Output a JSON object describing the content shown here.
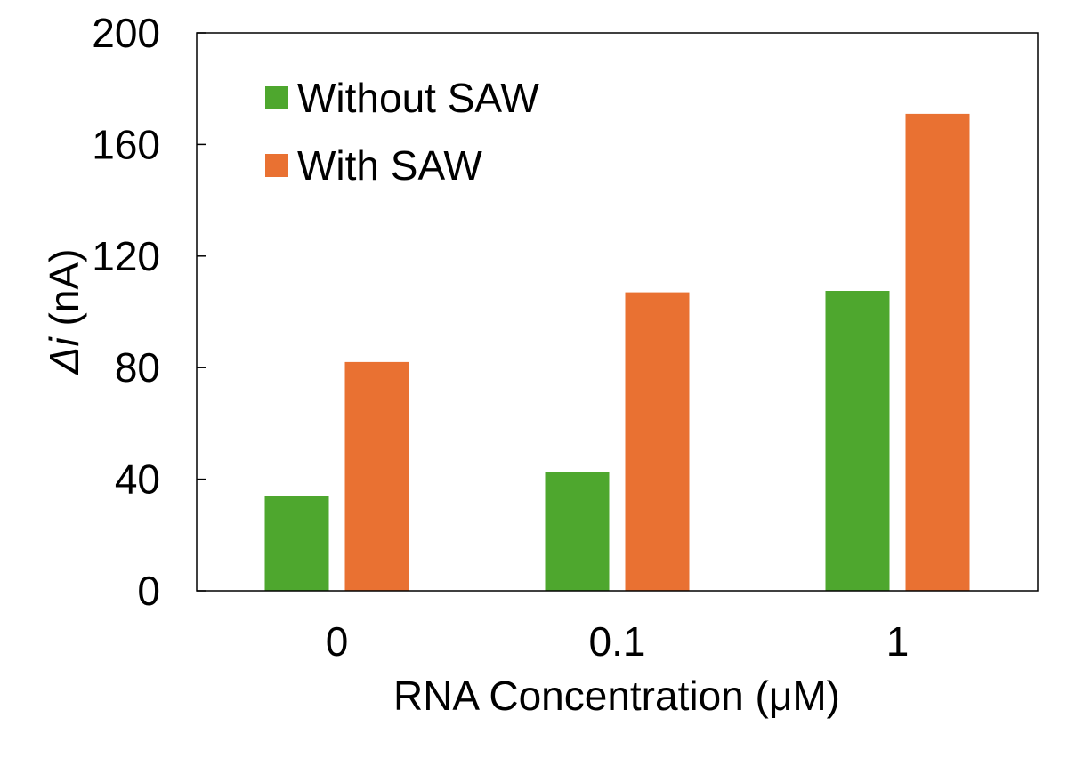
{
  "chart_data": {
    "type": "bar",
    "title": "",
    "xlabel": "RNA Concentration (μM)",
    "ylabel_symbol": "Δ",
    "ylabel_var": "i",
    "ylabel_unit": " (nA)",
    "categories": [
      "0",
      "0.1",
      "1"
    ],
    "series": [
      {
        "name": "Without SAW",
        "values": [
          34,
          42.5,
          107.5
        ],
        "color": "#4ea72e"
      },
      {
        "name": "With SAW",
        "values": [
          82,
          107,
          171
        ],
        "color": "#e97132"
      }
    ],
    "ylim": [
      0,
      200
    ],
    "yticks": [
      "0",
      "40",
      "80",
      "120",
      "160",
      "200"
    ],
    "grid": false,
    "legend_position": "top-left"
  }
}
